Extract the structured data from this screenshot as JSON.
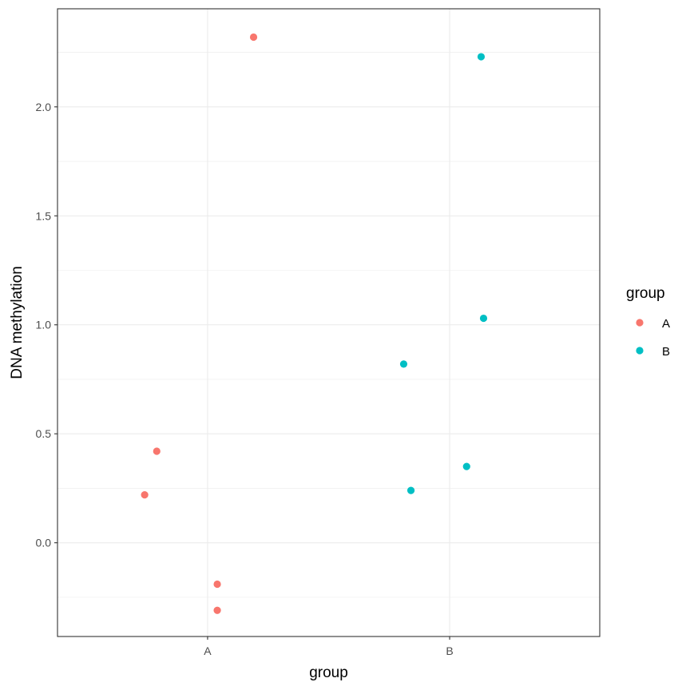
{
  "chart_data": {
    "type": "scatter",
    "xlabel": "group",
    "ylabel": "DNA methylation",
    "categories": [
      "A",
      "B"
    ],
    "x_jitter_range": [
      0.38,
      2.62
    ],
    "ylim": [
      -0.43,
      2.45
    ],
    "y_ticks": [
      0.0,
      0.5,
      1.0,
      1.5,
      2.0
    ],
    "y_tick_labels": [
      "0.0",
      "0.5",
      "1.0",
      "1.5",
      "2.0"
    ],
    "grid": true,
    "legend": {
      "title": "group",
      "position": "right",
      "entries": [
        "A",
        "B"
      ]
    },
    "colors": {
      "A": "#F8766D",
      "B": "#00BFC4"
    },
    "series": [
      {
        "name": "A",
        "points": [
          {
            "x": 1.19,
            "y": 2.32
          },
          {
            "x": 0.79,
            "y": 0.42
          },
          {
            "x": 0.74,
            "y": 0.22
          },
          {
            "x": 1.04,
            "y": -0.19
          },
          {
            "x": 1.04,
            "y": -0.31
          }
        ]
      },
      {
        "name": "B",
        "points": [
          {
            "x": 2.13,
            "y": 2.23
          },
          {
            "x": 2.14,
            "y": 1.03
          },
          {
            "x": 1.81,
            "y": 0.82
          },
          {
            "x": 2.07,
            "y": 0.35
          },
          {
            "x": 1.84,
            "y": 0.24
          }
        ]
      }
    ]
  }
}
